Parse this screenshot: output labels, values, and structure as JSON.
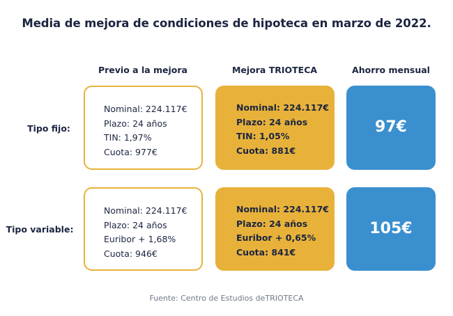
{
  "title": "Media de mejora de condiciones de hipoteca en marzo de 2022.",
  "headers": {
    "previo": "Previo a la mejora",
    "mejora": "Mejora TRIOTECA",
    "ahorro": "Ahorro mensual"
  },
  "rows": [
    {
      "label": "Tipo fijo:",
      "previo": [
        "Nominal: 224.117€",
        "Plazo: 24 años",
        "TIN: 1,97%",
        "Cuota: 977€"
      ],
      "mejora": [
        "Nominal: 224.117€",
        "Plazo: 24 años",
        "TIN: 1,05%",
        "Cuota: 881€"
      ],
      "ahorro": "97€"
    },
    {
      "label": "Tipo variable:",
      "previo": [
        "Nominal: 224.117€",
        "Plazo: 24 años",
        "Euribor + 1,68%",
        "Cuota: 946€"
      ],
      "mejora": [
        "Nominal: 224.117€",
        "Plazo: 24 años",
        "Euribor + 0,65%",
        "Cuota: 841€"
      ],
      "ahorro": "105€"
    }
  ],
  "source": "Fuente: Centro de Estudios deTRIOTECA",
  "colors": {
    "accent_yellow": "#e8b23a",
    "accent_blue": "#3a8fcf",
    "text_dark": "#1b2540",
    "source_gray": "#707887"
  }
}
